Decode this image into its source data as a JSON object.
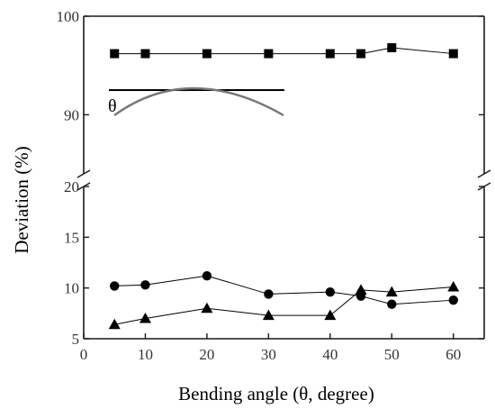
{
  "chart_data": {
    "type": "line",
    "xlabel": "Bending angle (θ, degree)",
    "ylabel": "Deviation (%)",
    "xlim": [
      0,
      65
    ],
    "x_ticks": [
      "0",
      "10",
      "20",
      "30",
      "40",
      "50",
      "60"
    ],
    "y_axis_broken": true,
    "y_segments": [
      {
        "range": [
          5,
          20
        ],
        "ticks": [
          "5",
          "10",
          "15",
          "20"
        ]
      },
      {
        "range": [
          84,
          100
        ],
        "ticks": [
          "90",
          "100"
        ]
      }
    ],
    "grid": false,
    "legend": "none",
    "series": [
      {
        "marker": "square",
        "x": [
          5,
          10,
          20,
          30,
          40,
          45,
          50,
          60
        ],
        "y": [
          96.2,
          96.2,
          96.2,
          96.2,
          96.2,
          96.2,
          96.8,
          96.2
        ]
      },
      {
        "marker": "circle",
        "x": [
          5,
          10,
          20,
          30,
          40,
          45,
          50,
          60
        ],
        "y": [
          10.2,
          10.3,
          11.2,
          9.4,
          9.6,
          9.2,
          8.4,
          8.8
        ]
      },
      {
        "marker": "triangle",
        "x": [
          5,
          10,
          20,
          30,
          40,
          45,
          50,
          60
        ],
        "y": [
          6.4,
          7.0,
          8.0,
          7.3,
          7.3,
          9.8,
          9.6,
          10.1
        ]
      }
    ],
    "inset": {
      "label": "θ"
    },
    "colors": {
      "series": "#000000",
      "axis": "#1a1a1a",
      "inset_arc": "#777777"
    }
  }
}
